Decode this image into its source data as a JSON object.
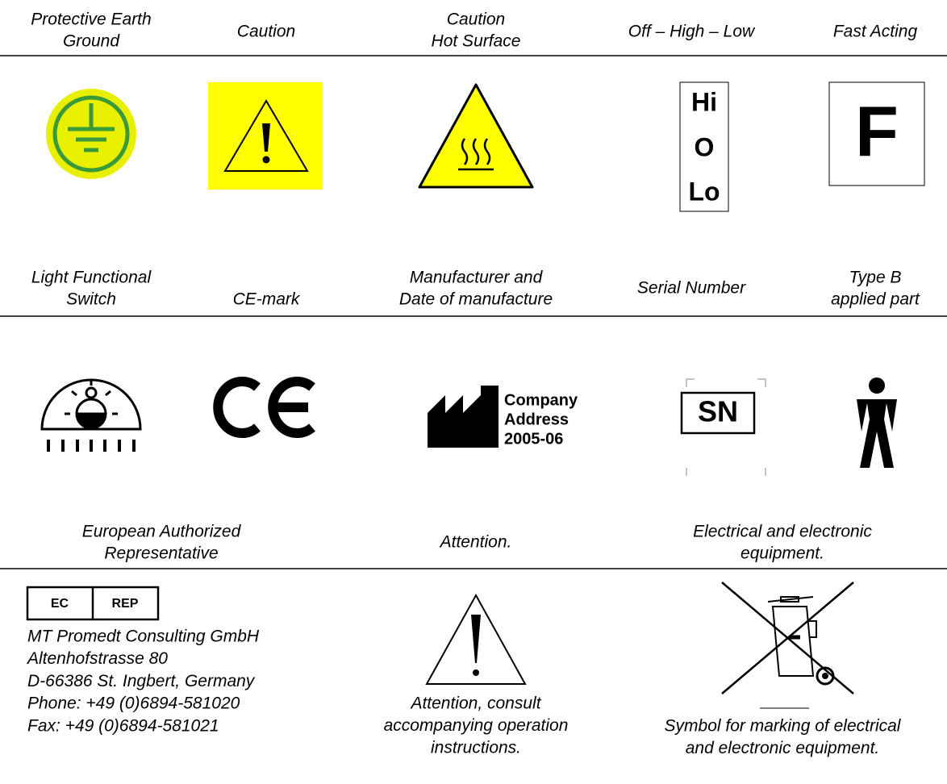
{
  "row_1": {
    "labels": [
      [
        "Protective Earth",
        "Ground"
      ],
      [
        "Caution"
      ],
      [
        "Caution",
        "Hot Surface"
      ],
      [
        "Off – High – Low"
      ],
      [
        "Fast Acting"
      ]
    ],
    "switch_texts": [
      "Hi",
      "O",
      "Lo"
    ],
    "fuse_text": "F"
  },
  "row_2": {
    "labels": [
      [
        "Light Functional",
        "Switch"
      ],
      [
        "CE-mark"
      ],
      [
        "Manufacturer and",
        "Date of manufacture"
      ],
      [
        "Serial Number"
      ],
      [
        "Type B",
        "applied part"
      ]
    ],
    "manufacturer_texts": [
      "Company",
      "Address",
      "2005-06"
    ],
    "serial_text": "SN"
  },
  "row_3": {
    "labels": [
      [
        "European Authorized",
        "Representative"
      ],
      [
        "Attention."
      ],
      [
        "Electrical and electronic",
        "equipment."
      ]
    ],
    "ec_rep": [
      "EC",
      "REP"
    ],
    "address": [
      "MT Promedt Consulting GmbH",
      "Altenhofstrasse 80",
      "D-66386 St. Ingbert, Germany",
      "Phone: +49 (0)6894-581020",
      "Fax:    +49 (0)6894-581021"
    ],
    "attention_description": [
      "Attention, consult",
      "accompanying operation",
      "instructions."
    ],
    "weee_description": [
      "Symbol for marking of electrical",
      "and electronic equipment."
    ]
  }
}
